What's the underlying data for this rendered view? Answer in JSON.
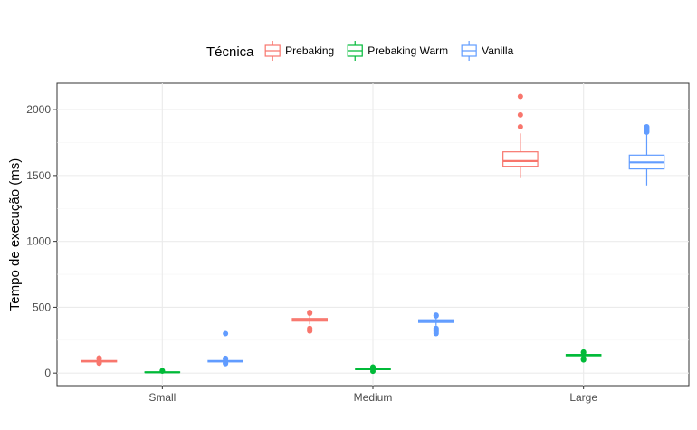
{
  "chart_data": {
    "type": "boxplot",
    "xlabel": "",
    "ylabel": "Tempo de execução (ms)",
    "categories": [
      "Small",
      "Medium",
      "Large"
    ],
    "ylim": [
      -95,
      2200
    ],
    "yticks": [
      0,
      500,
      1000,
      1500,
      2000
    ],
    "grid": true,
    "legend": {
      "title": "Técnica",
      "position": "top"
    },
    "series": [
      {
        "name": "Prebaking",
        "color": "#F8766D",
        "boxes": [
          {
            "category": "Small",
            "whisker_low": 78,
            "q1": 85,
            "median": 90,
            "q3": 95,
            "whisker_high": 102,
            "outliers": [
              75,
              80,
              108,
              115
            ]
          },
          {
            "category": "Medium",
            "whisker_low": 370,
            "q1": 395,
            "median": 405,
            "q3": 415,
            "whisker_high": 440,
            "outliers": [
              320,
              330,
              340,
              455,
              462
            ]
          },
          {
            "category": "Large",
            "whisker_low": 1480,
            "q1": 1570,
            "median": 1610,
            "q3": 1680,
            "whisker_high": 1820,
            "outliers": [
              1870,
              1960,
              2100
            ]
          }
        ]
      },
      {
        "name": "Prebaking Warm",
        "color": "#00BA38",
        "boxes": [
          {
            "category": "Small",
            "whisker_low": 0,
            "q1": 4,
            "median": 6,
            "q3": 9,
            "whisker_high": 12,
            "outliers": [
              15,
              18
            ]
          },
          {
            "category": "Medium",
            "whisker_low": 18,
            "q1": 26,
            "median": 30,
            "q3": 34,
            "whisker_high": 40,
            "outliers": [
              14,
              42,
              46
            ]
          },
          {
            "category": "Large",
            "whisker_low": 120,
            "q1": 131,
            "median": 136,
            "q3": 141,
            "whisker_high": 150,
            "outliers": [
              100,
              105,
              112,
              155,
              160
            ]
          }
        ]
      },
      {
        "name": "Vanilla",
        "color": "#619CFF",
        "boxes": [
          {
            "category": "Small",
            "whisker_low": 78,
            "q1": 85,
            "median": 90,
            "q3": 95,
            "whisker_high": 102,
            "outliers": [
              72,
              76,
              106,
              112,
              300
            ]
          },
          {
            "category": "Medium",
            "whisker_low": 360,
            "q1": 385,
            "median": 395,
            "q3": 405,
            "whisker_high": 425,
            "outliers": [
              300,
              310,
              320,
              330,
              340,
              435,
              440
            ]
          },
          {
            "category": "Large",
            "whisker_low": 1425,
            "q1": 1550,
            "median": 1600,
            "q3": 1655,
            "whisker_high": 1815,
            "outliers": [
              1830,
              1840,
              1850,
              1860,
              1870
            ]
          }
        ]
      }
    ]
  }
}
